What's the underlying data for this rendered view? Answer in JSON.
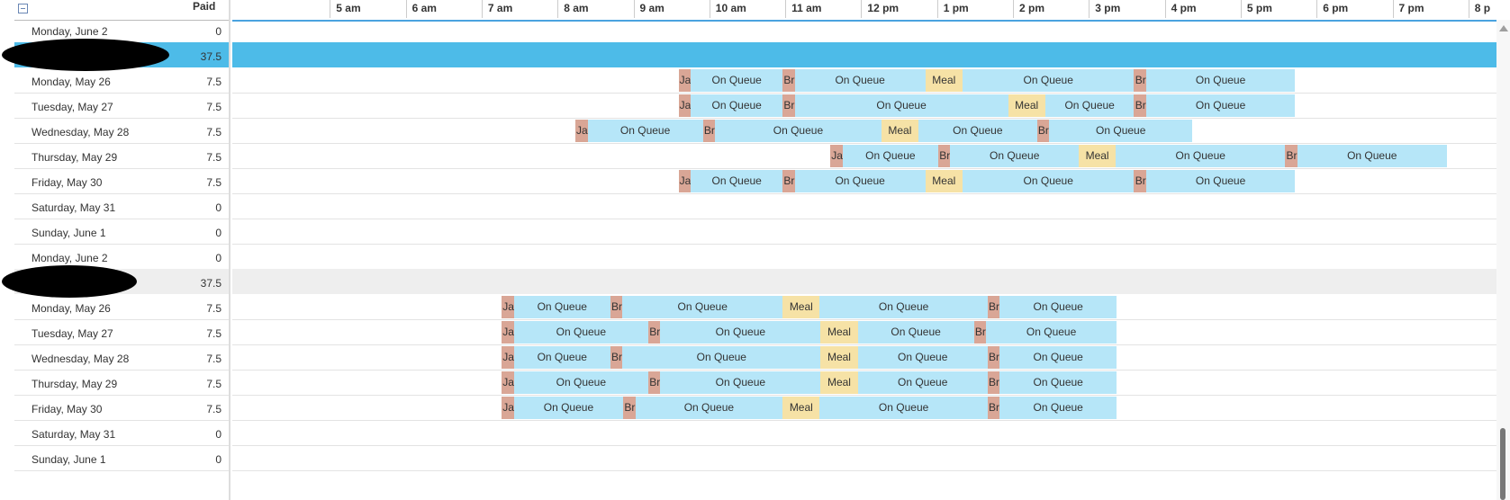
{
  "header": {
    "paid_label": "Paid",
    "hours": [
      "5 am",
      "6 am",
      "7 am",
      "8 am",
      "9 am",
      "10 am",
      "11 am",
      "12 pm",
      "1 pm",
      "2 pm",
      "3 pm",
      "4 pm",
      "5 pm",
      "6 pm",
      "7 pm",
      "8 p"
    ]
  },
  "rows": [
    {
      "label": "Monday, June 2",
      "paid": "0",
      "type": "day"
    },
    {
      "label": "",
      "paid": "37.5",
      "type": "agent-1",
      "redacted": true
    },
    {
      "label": "Monday, May 26",
      "paid": "7.5",
      "type": "day",
      "segments": [
        [
          "ja",
          "Ja",
          9.88,
          10.04
        ],
        [
          "onqueue",
          "On Queue",
          10.04,
          11.25
        ],
        [
          "br",
          "Br",
          11.25,
          11.41
        ],
        [
          "onqueue",
          "On Queue",
          11.41,
          13.13
        ],
        [
          "meal",
          "Meal",
          13.13,
          13.62
        ],
        [
          "onqueue",
          "On Queue",
          13.62,
          15.88
        ],
        [
          "br",
          "Br",
          15.88,
          16.04
        ],
        [
          "onqueue",
          "On Queue",
          16.04,
          18.0
        ]
      ]
    },
    {
      "label": "Tuesday, May 27",
      "paid": "7.5",
      "type": "day",
      "segments": [
        [
          "ja",
          "Ja",
          9.88,
          10.04
        ],
        [
          "onqueue",
          "On Queue",
          10.04,
          11.25
        ],
        [
          "br",
          "Br",
          11.25,
          11.41
        ],
        [
          "onqueue",
          "On Queue",
          11.41,
          14.22
        ],
        [
          "meal",
          "Meal",
          14.22,
          14.71
        ],
        [
          "onqueue",
          "On Queue",
          14.71,
          15.88
        ],
        [
          "br",
          "Br",
          15.88,
          16.04
        ],
        [
          "onqueue",
          "On Queue",
          16.04,
          18.0
        ]
      ]
    },
    {
      "label": "Wednesday, May 28",
      "paid": "7.5",
      "type": "day",
      "segments": [
        [
          "ja",
          "Ja",
          8.52,
          8.68
        ],
        [
          "onqueue",
          "On Queue",
          8.68,
          10.2
        ],
        [
          "br",
          "Br",
          10.2,
          10.36
        ],
        [
          "onqueue",
          "On Queue",
          10.36,
          12.55
        ],
        [
          "meal",
          "Meal",
          12.55,
          13.04
        ],
        [
          "onqueue",
          "On Queue",
          13.04,
          14.6
        ],
        [
          "br",
          "Br",
          14.6,
          14.76
        ],
        [
          "onqueue",
          "On Queue",
          14.76,
          16.65
        ]
      ]
    },
    {
      "label": "Thursday, May 29",
      "paid": "7.5",
      "type": "day",
      "segments": [
        [
          "ja",
          "Ja",
          11.88,
          12.04
        ],
        [
          "onqueue",
          "On Queue",
          12.04,
          13.3
        ],
        [
          "br",
          "Br",
          13.3,
          13.46
        ],
        [
          "onqueue",
          "On Queue",
          13.46,
          15.15
        ],
        [
          "meal",
          "Meal",
          15.15,
          15.64
        ],
        [
          "onqueue",
          "On Queue",
          15.64,
          17.87
        ],
        [
          "br",
          "Br",
          17.87,
          18.03
        ],
        [
          "onqueue",
          "On Queue",
          18.03,
          20.0
        ]
      ]
    },
    {
      "label": "Friday, May 30",
      "paid": "7.5",
      "type": "day",
      "segments": [
        [
          "ja",
          "Ja",
          9.88,
          10.04
        ],
        [
          "onqueue",
          "On Queue",
          10.04,
          11.25
        ],
        [
          "br",
          "Br",
          11.25,
          11.41
        ],
        [
          "onqueue",
          "On Queue",
          11.41,
          13.13
        ],
        [
          "meal",
          "Meal",
          13.13,
          13.62
        ],
        [
          "onqueue",
          "On Queue",
          13.62,
          15.88
        ],
        [
          "br",
          "Br",
          15.88,
          16.04
        ],
        [
          "onqueue",
          "On Queue",
          16.04,
          18.0
        ]
      ]
    },
    {
      "label": "Saturday, May 31",
      "paid": "0",
      "type": "day"
    },
    {
      "label": "Sunday, June 1",
      "paid": "0",
      "type": "day"
    },
    {
      "label": "Monday, June 2",
      "paid": "0",
      "type": "day"
    },
    {
      "label": "",
      "paid": "37.5",
      "type": "agent-2",
      "redacted": true
    },
    {
      "label": "Monday, May 26",
      "paid": "7.5",
      "type": "day",
      "segments": [
        [
          "ja",
          "Ja",
          7.55,
          7.71
        ],
        [
          "onqueue",
          "On Queue",
          7.71,
          8.98
        ],
        [
          "br",
          "Br",
          8.98,
          9.14
        ],
        [
          "onqueue",
          "On Queue",
          9.14,
          11.25
        ],
        [
          "meal",
          "Meal",
          11.25,
          11.74
        ],
        [
          "onqueue",
          "On Queue",
          11.74,
          13.95
        ],
        [
          "br",
          "Br",
          13.95,
          14.11
        ],
        [
          "onqueue",
          "On Queue",
          14.11,
          15.65
        ]
      ]
    },
    {
      "label": "Tuesday, May 27",
      "paid": "7.5",
      "type": "day",
      "segments": [
        [
          "ja",
          "Ja",
          7.55,
          7.71
        ],
        [
          "onqueue",
          "On Queue",
          7.71,
          9.48
        ],
        [
          "br",
          "Br",
          9.48,
          9.64
        ],
        [
          "onqueue",
          "On Queue",
          9.64,
          11.75
        ],
        [
          "meal",
          "Meal",
          11.75,
          12.24
        ],
        [
          "onqueue",
          "On Queue",
          12.24,
          13.77
        ],
        [
          "br",
          "Br",
          13.77,
          13.93
        ],
        [
          "onqueue",
          "On Queue",
          13.93,
          15.65
        ]
      ]
    },
    {
      "label": "Wednesday, May 28",
      "paid": "7.5",
      "type": "day",
      "segments": [
        [
          "ja",
          "Ja",
          7.55,
          7.71
        ],
        [
          "onqueue",
          "On Queue",
          7.71,
          8.98
        ],
        [
          "br",
          "Br",
          8.98,
          9.14
        ],
        [
          "onqueue",
          "On Queue",
          9.14,
          11.75
        ],
        [
          "meal",
          "Meal",
          11.75,
          12.24
        ],
        [
          "onqueue",
          "On Queue",
          12.24,
          13.95
        ],
        [
          "br",
          "Br",
          13.95,
          14.11
        ],
        [
          "onqueue",
          "On Queue",
          14.11,
          15.65
        ]
      ]
    },
    {
      "label": "Thursday, May 29",
      "paid": "7.5",
      "type": "day",
      "segments": [
        [
          "ja",
          "Ja",
          7.55,
          7.71
        ],
        [
          "onqueue",
          "On Queue",
          7.71,
          9.48
        ],
        [
          "br",
          "Br",
          9.48,
          9.64
        ],
        [
          "onqueue",
          "On Queue",
          9.64,
          11.75
        ],
        [
          "meal",
          "Meal",
          11.75,
          12.24
        ],
        [
          "onqueue",
          "On Queue",
          12.24,
          13.95
        ],
        [
          "br",
          "Br",
          13.95,
          14.11
        ],
        [
          "onqueue",
          "On Queue",
          14.11,
          15.65
        ]
      ]
    },
    {
      "label": "Friday, May 30",
      "paid": "7.5",
      "type": "day",
      "segments": [
        [
          "ja",
          "Ja",
          7.55,
          7.71
        ],
        [
          "onqueue",
          "On Queue",
          7.71,
          9.15
        ],
        [
          "br",
          "Br",
          9.15,
          9.31
        ],
        [
          "onqueue",
          "On Queue",
          9.31,
          11.25
        ],
        [
          "meal",
          "Meal",
          11.25,
          11.74
        ],
        [
          "onqueue",
          "On Queue",
          11.74,
          13.95
        ],
        [
          "br",
          "Br",
          13.95,
          14.11
        ],
        [
          "onqueue",
          "On Queue",
          14.11,
          15.65
        ]
      ]
    },
    {
      "label": "Saturday, May 31",
      "paid": "0",
      "type": "day"
    },
    {
      "label": "Sunday, June 1",
      "paid": "0",
      "type": "day"
    }
  ],
  "colors": {
    "on_queue": "#b6e6f8",
    "meal": "#f6e2a6",
    "break": "#d9a696",
    "selected_row": "#4dbbe8",
    "agent_row": "#eeeeee"
  }
}
